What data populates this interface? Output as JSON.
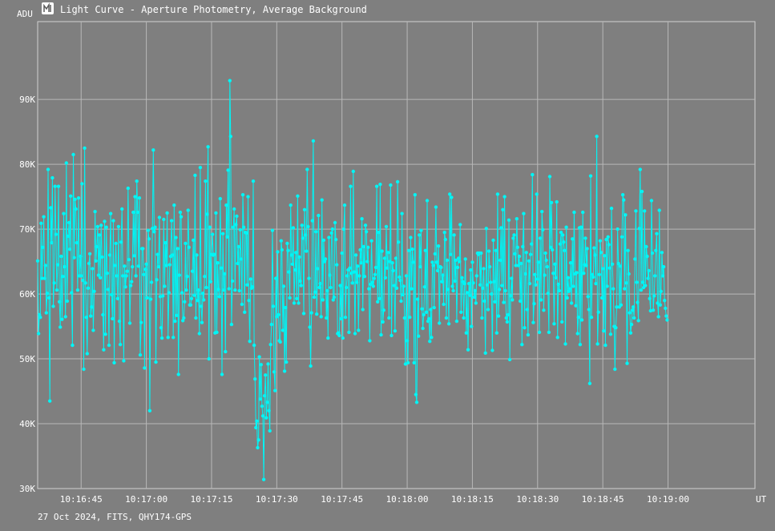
{
  "window": {
    "title": "Light Curve - Aperture Photometry, Average Background",
    "icon": "light-curve-app-icon"
  },
  "footer": {
    "caption": "27 Oct 2024, FITS, QHY174-GPS"
  },
  "colors": {
    "background": "#7f7f7f",
    "series": "#00f5f5",
    "grid": "#b8b8b8",
    "text": "#ffffff"
  },
  "chart_data": {
    "type": "line",
    "title": "Light Curve - Aperture Photometry, Average Background",
    "xlabel": "UT",
    "ylabel": "ADU",
    "x_unit": "seconds after 10:16:35 UT",
    "xlim": [
      0,
      165
    ],
    "ylim": [
      30000,
      102000
    ],
    "grid": true,
    "x_ticks": [
      "10:16:45",
      "10:17:00",
      "10:17:15",
      "10:17:30",
      "10:17:45",
      "10:18:00",
      "10:18:15",
      "10:18:30",
      "10:18:45",
      "10:19:00"
    ],
    "x_tick_values": [
      10,
      25,
      40,
      55,
      70,
      85,
      100,
      115,
      130,
      145
    ],
    "y_ticks": [
      "30K",
      "40K",
      "50K",
      "60K",
      "70K",
      "80K",
      "90K"
    ],
    "y_tick_values": [
      30000,
      40000,
      50000,
      60000,
      70000,
      80000,
      90000
    ],
    "sample_interval_s": 0.2,
    "series": [
      {
        "name": "",
        "values": [
          65100,
          53900,
          56800,
          56400,
          70900,
          62400,
          67200,
          71900,
          62400,
          64400,
          57100,
          60100,
          79200,
          59400,
          43500,
          73300,
          67900,
          77900,
          58100,
          61700,
          76600,
          69200,
          60600,
          64500,
          76600,
          58800,
          54900,
          65800,
          56100,
          62700,
          72400,
          64200,
          56500,
          80200,
          58900,
          68900,
          71000,
          66900,
          75100,
          60200,
          52100,
          81500,
          65600,
          74600,
          73100,
          67900,
          60600,
          74800,
          62800,
          65800,
          62800,
          77000,
          62100,
          48400,
          82500,
          61700,
          56400,
          50800,
          60900,
          64700,
          66200,
          56600,
          58000,
          63900,
          54400,
          60400,
          72700,
          65100,
          67300,
          70400,
          62900,
          69100,
          62500,
          70600,
          65700,
          56800,
          51400,
          71200,
          53800,
          70300,
          63200,
          60700,
          52100,
          66000,
          72400,
          59900,
          56200,
          71300,
          49400,
          64400,
          67800,
          62800,
          59300,
          70400,
          55800,
          52200,
          68000,
          73100,
          62800,
          49700,
          64300,
          61100,
          62800,
          63500,
          76300,
          65300,
          55500,
          61300,
          61900,
          64200,
          72600,
          65900,
          75000,
          62800,
          77400,
          72600,
          64300,
          74800,
          50600,
          55600,
          67000,
          67000,
          63000,
          48600,
          63800,
          64600,
          59400,
          69800,
          68500,
          42000,
          59200,
          61800,
          70100,
          82200,
          69600,
          70300,
          49500,
          62200,
          66100,
          64200,
          71800,
          59600,
          54800,
          53200,
          59700,
          71500,
          61200,
          67900,
          64400,
          72500,
          53300,
          60200,
          64500,
          65800,
          71300,
          66000,
          53300,
          73700,
          55800,
          68700,
          56700,
          67000,
          47600,
          62900,
          72600,
          71900,
          60200,
          55900,
          56300,
          58800,
          67800,
          60600,
          62700,
          72900,
          67200,
          58300,
          58300,
          59300,
          63500,
          68300,
          59800,
          78300,
          56300,
          66000,
          59000,
          60600,
          53900,
          79500,
          58100,
          55600,
          60100,
          59100,
          62700,
          77400,
          61000,
          72300,
          82700,
          50000,
          70300,
          61900,
          66100,
          69200,
          66000,
          66100,
          54000,
          72500,
          54100,
          64800,
          60700,
          59600,
          74700,
          64000,
          47600,
          69300,
          60600,
          63100,
          51100,
          73700,
          68800,
          79100,
          60800,
          92900,
          84300,
          55300,
          62000,
          70300,
          73100,
          60600,
          70700,
          72000,
          64700,
          67300,
          60500,
          69900,
          65400,
          58400,
          75300,
          70300,
          57200,
          69500,
          69400,
          61400,
          75000,
          59000,
          52700,
          62300,
          60900,
          61100,
          77400,
          52100,
          46900,
          39400,
          40400,
          36300,
          37500,
          50300,
          43800,
          49100,
          42700,
          41200,
          31400,
          44300,
          47500,
          40900,
          43300,
          49200,
          42000,
          38900,
          52200,
          55300,
          69800,
          58100,
          48000,
          45100,
          62400,
          56500,
          66500,
          56800,
          52800,
          52600,
          68200,
          66800,
          54400,
          61200,
          48100,
          57900,
          49500,
          67800,
          66700,
          63400,
          59400,
          73700,
          66000,
          64600,
          70200,
          58600,
          63700,
          66400,
          59300,
          75100,
          58600,
          65700,
          62000,
          61300,
          70600,
          68600,
          57000,
          73000,
          69100,
          66600,
          79200,
          70400,
          62400,
          54900,
          48900,
          57100,
          71300,
          83600,
          59500,
          60300,
          69600,
          56900,
          63900,
          72100,
          61000,
          61600,
          56500,
          74500,
          59100,
          68300,
          65000,
          65400,
          56300,
          60500,
          53200,
          68700,
          62900,
          61000,
          69400,
          70000,
          59100,
          59500,
          71000,
          68400,
          64500,
          53900,
          54000,
          53600,
          61300,
          56200,
          66300,
          53200,
          70000,
          73700,
          56400,
          61000,
          62800,
          63700,
          54100,
          64000,
          76600,
          63200,
          61700,
          78900,
          63400,
          53900,
          66000,
          61800,
          64300,
          54400,
          62800,
          66800,
          64800,
          71600,
          57600,
          67300,
          62700,
          70600,
          69600,
          65000,
          67200,
          60800,
          52800,
          61500,
          68200,
          61800,
          61200,
          62400,
          63000,
          64100,
          76600,
          58800,
          69500,
          59300,
          76900,
          53700,
          66600,
          55700,
          57500,
          65500,
          62500,
          70400,
          64000,
          66400,
          56300,
          65000,
          76800,
          53600,
          64800,
          63600,
          61300,
          54300,
          65500,
          60900,
          77300,
          68000,
          62600,
          62100,
          58900,
          72400,
          59900,
          61200,
          56300,
          49200,
          62800,
          52800,
          49400,
          66700,
          56400,
          68700,
          60800,
          66900,
          64900,
          49400,
          75300,
          44500,
          43300,
          59200,
          53500,
          69100,
          64200,
          69800,
          57700,
          54700,
          56800,
          61100,
          66700,
          57200,
          74400,
          55800,
          56200,
          52700,
          57600,
          53300,
          64900,
          64400,
          57900,
          66200,
          73400,
          64900,
          63600,
          67400,
          55500,
          64200,
          64100,
          61900,
          62900,
          58400,
          69500,
          68400,
          56300,
          65200,
          60700,
          55400,
          75400,
          66100,
          74900,
          61200,
          60500,
          69100,
          62000,
          65200,
          55800,
          64100,
          65500,
          65000,
          70700,
          57200,
          62500,
          61900,
          56300,
          61600,
          65400,
          54000,
          60200,
          51400,
          61600,
          59800,
          63700,
          55000,
          64900,
          61700,
          59500,
          60500,
          58600,
          62800,
          66300,
          66100,
          66300,
          61400,
          66300,
          56300,
          60900,
          63900,
          58900,
          50900,
          70100,
          61400,
          57600,
          66600,
          64200,
          61800,
          60000,
          51300,
          68300,
          61900,
          58800,
          66700,
          54000,
          75400,
          56600,
          60700,
          65200,
          70200,
          61300,
          73000,
          58700,
          75000,
          60500,
          56300,
          55700,
          56800,
          71400,
          49900,
          59700,
          62400,
          59100,
          68600,
          69100,
          66200,
          64400,
          71600,
          67200,
          64400,
          65800,
          58900,
          64700,
          52200,
          67300,
          72400,
          54800,
          63100,
          66400,
          57600,
          53700,
          65100,
          61600,
          66100,
          67700,
          78400,
          55600,
          58500,
          63000,
          61400,
          75400,
          62300,
          64900,
          54100,
          68600,
          59100,
          72700,
          69900,
          57500,
          62900,
          66300,
          65200,
          64200,
          60100,
          54100,
          78100,
          67200,
          74100,
          66800,
          63200,
          55400,
          64600,
          62500,
          74200,
          53300,
          61500,
          60500,
          67700,
          69500,
          55700,
          69100,
          68000,
          66700,
          52300,
          70300,
          59400,
          62500,
          60400,
          60800,
          64800,
          58600,
          68500,
          61200,
          72600,
          63100,
          58200,
          63300,
          53900,
          56400,
          70200,
          52200,
          70300,
          56000,
          72600,
          63200,
          64500,
          68600,
          64400,
          67000,
          59600,
          57600,
          46200,
          78200,
          56400,
          63000,
          62600,
          67100,
          66000,
          61600,
          84300,
          52300,
          57200,
          63000,
          68200,
          66400,
          59400,
          63900,
          54300,
          65900,
          52100,
          68400,
          61200,
          68800,
          67600,
          64000,
          53800,
          73200,
          64600,
          60800,
          55000,
          48400,
          54800,
          58000,
          70000,
          64700,
          58000,
          64300,
          58300,
          68800,
          75300,
          74500,
          60800,
          72200,
          61700,
          49300,
          66700,
          63100,
          57100,
          54000,
          55300,
          57500,
          58000,
          56300,
          65400,
          72800,
          61800,
          58700,
          55900,
          70100,
          79200,
          60600,
          75800,
          61800,
          61000,
          72800,
          61300,
          67300,
          65800,
          62400,
          63600,
          59300,
          57400,
          74400,
          66300,
          57500,
          59700,
          62800,
          66700,
          69300,
          58600,
          56500,
          72900,
          58300,
          60400,
          66400,
          62800,
          64200,
          59000,
          57800,
          56600,
          56000
        ]
      }
    ]
  }
}
